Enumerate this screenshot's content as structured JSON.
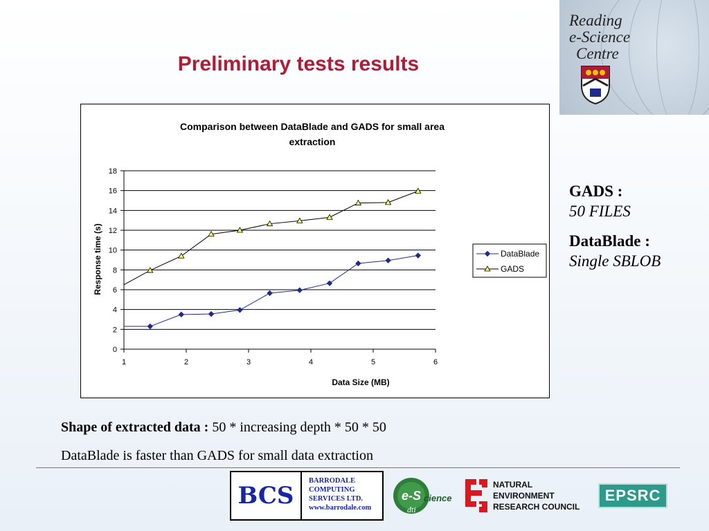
{
  "slide": {
    "title": "Preliminary tests results",
    "logo_text": [
      "Reading",
      "e-Science",
      "Centre"
    ]
  },
  "side": {
    "gads_label": "GADS :",
    "gads_value": "50 FILES",
    "datablade_label": "DataBlade :",
    "datablade_value": "Single SBLOB"
  },
  "notes": {
    "shape_label": "Shape of extracted data :",
    "shape_value": "50 * increasing depth * 50 * 50",
    "conclusion": "DataBlade is faster than GADS for small data extraction"
  },
  "footer": {
    "bcs_logo": "BCS",
    "bcs_lines": [
      "BARRODALE",
      "COMPUTING",
      "SERVICES LTD.",
      "www.barrodale.com"
    ],
    "escience_logo": "e-Science",
    "escience_sub": "dti",
    "nerc_lines": [
      "NATURAL",
      "ENVIRONMENT",
      "RESEARCH COUNCIL"
    ],
    "epsrc_logo": "EPSRC"
  },
  "chart_data": {
    "type": "line",
    "title": "Comparison between DataBlade and GADS for small area extraction",
    "xlabel": "Data Size (MB)",
    "ylabel": "Response time (s)",
    "xlim": [
      1,
      6
    ],
    "ylim": [
      0,
      18
    ],
    "xticks": [
      1,
      2,
      3,
      4,
      5,
      6
    ],
    "yticks": [
      0,
      2,
      4,
      6,
      8,
      10,
      12,
      14,
      16,
      18
    ],
    "grid": "horizontal",
    "legend": "right",
    "series": [
      {
        "name": "DataBlade",
        "marker": "diamond",
        "color": "#1f2a8c",
        "x": [
          1.0,
          1.42,
          1.92,
          2.4,
          2.86,
          3.34,
          3.82,
          4.3,
          4.76,
          5.24,
          5.72
        ],
        "y": [
          2.3,
          2.3,
          3.5,
          3.55,
          3.95,
          5.65,
          5.95,
          6.65,
          8.65,
          8.95,
          9.45
        ]
      },
      {
        "name": "GADS",
        "marker": "triangle",
        "color": "#000000",
        "marker_fill": "#ffff66",
        "x": [
          1.0,
          1.42,
          1.92,
          2.4,
          2.86,
          3.34,
          3.82,
          4.3,
          4.76,
          5.24,
          5.72
        ],
        "y": [
          6.5,
          7.95,
          9.4,
          11.6,
          12.0,
          12.65,
          12.95,
          13.3,
          14.75,
          14.8,
          15.95
        ]
      }
    ]
  }
}
